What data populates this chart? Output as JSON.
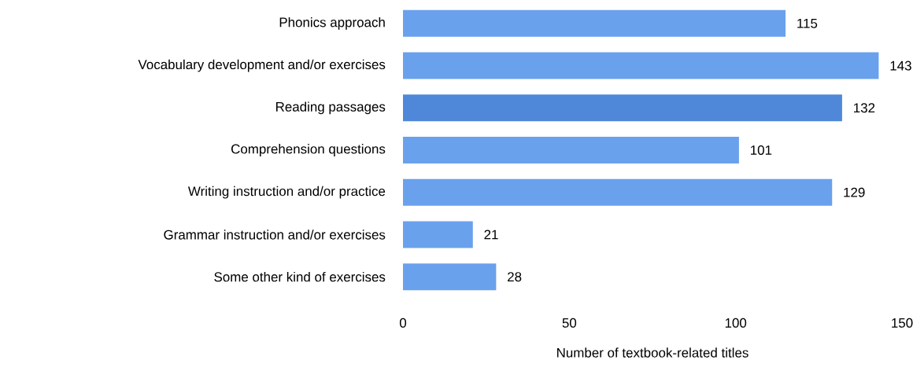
{
  "chart_data": {
    "type": "bar",
    "orientation": "horizontal",
    "xlabel": "Number of textbook-related titles",
    "categories": [
      "Phonics approach",
      "Vocabulary development and/or exercises",
      "Reading passages",
      "Comprehension questions",
      "Writing instruction and/or practice",
      "Grammar instruction and/or exercises",
      "Some other kind of exercises"
    ],
    "values": [
      115,
      143,
      132,
      101,
      129,
      21,
      28
    ],
    "colors": [
      "#69a1ec",
      "#69a1ec",
      "#4f88d9",
      "#69a1ec",
      "#69a1ec",
      "#69a1ec",
      "#69a1ec"
    ],
    "xlim": [
      0,
      150
    ],
    "xticks": [
      0,
      50,
      100,
      150
    ],
    "data_labels": true
  }
}
